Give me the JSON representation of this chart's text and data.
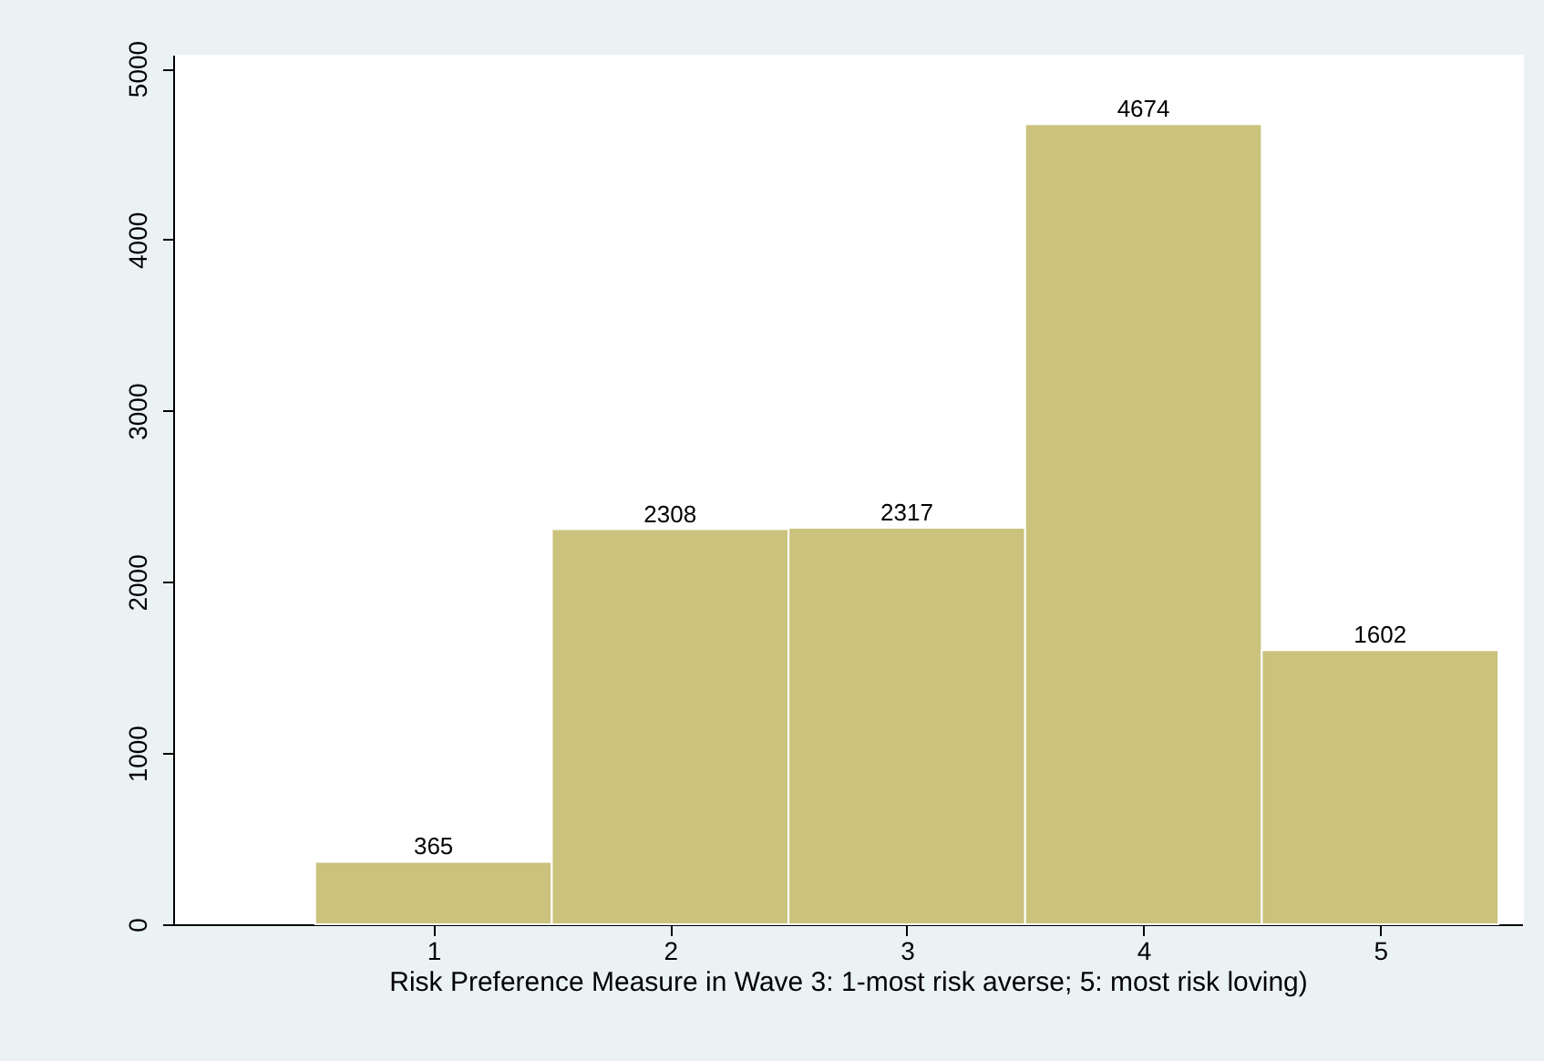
{
  "chart_data": {
    "type": "histogram",
    "xlabel": "Risk Preference Measure in Wave 3: 1-most risk averse; 5: most risk loving)",
    "bins": [
      0.5,
      1.5,
      2.5,
      3.5,
      4.5,
      5.5
    ],
    "values": [
      365,
      2308,
      2317,
      4674,
      1602
    ],
    "color": "#cbc27e",
    "data_labels": true,
    "xlim": [
      -0.1,
      5.6
    ],
    "xticks": [
      1,
      2,
      3,
      4,
      5
    ],
    "ylim": [
      0,
      5080
    ],
    "yticks": [
      0,
      1000,
      2000,
      3000,
      4000,
      5000
    ],
    "grid": false
  }
}
